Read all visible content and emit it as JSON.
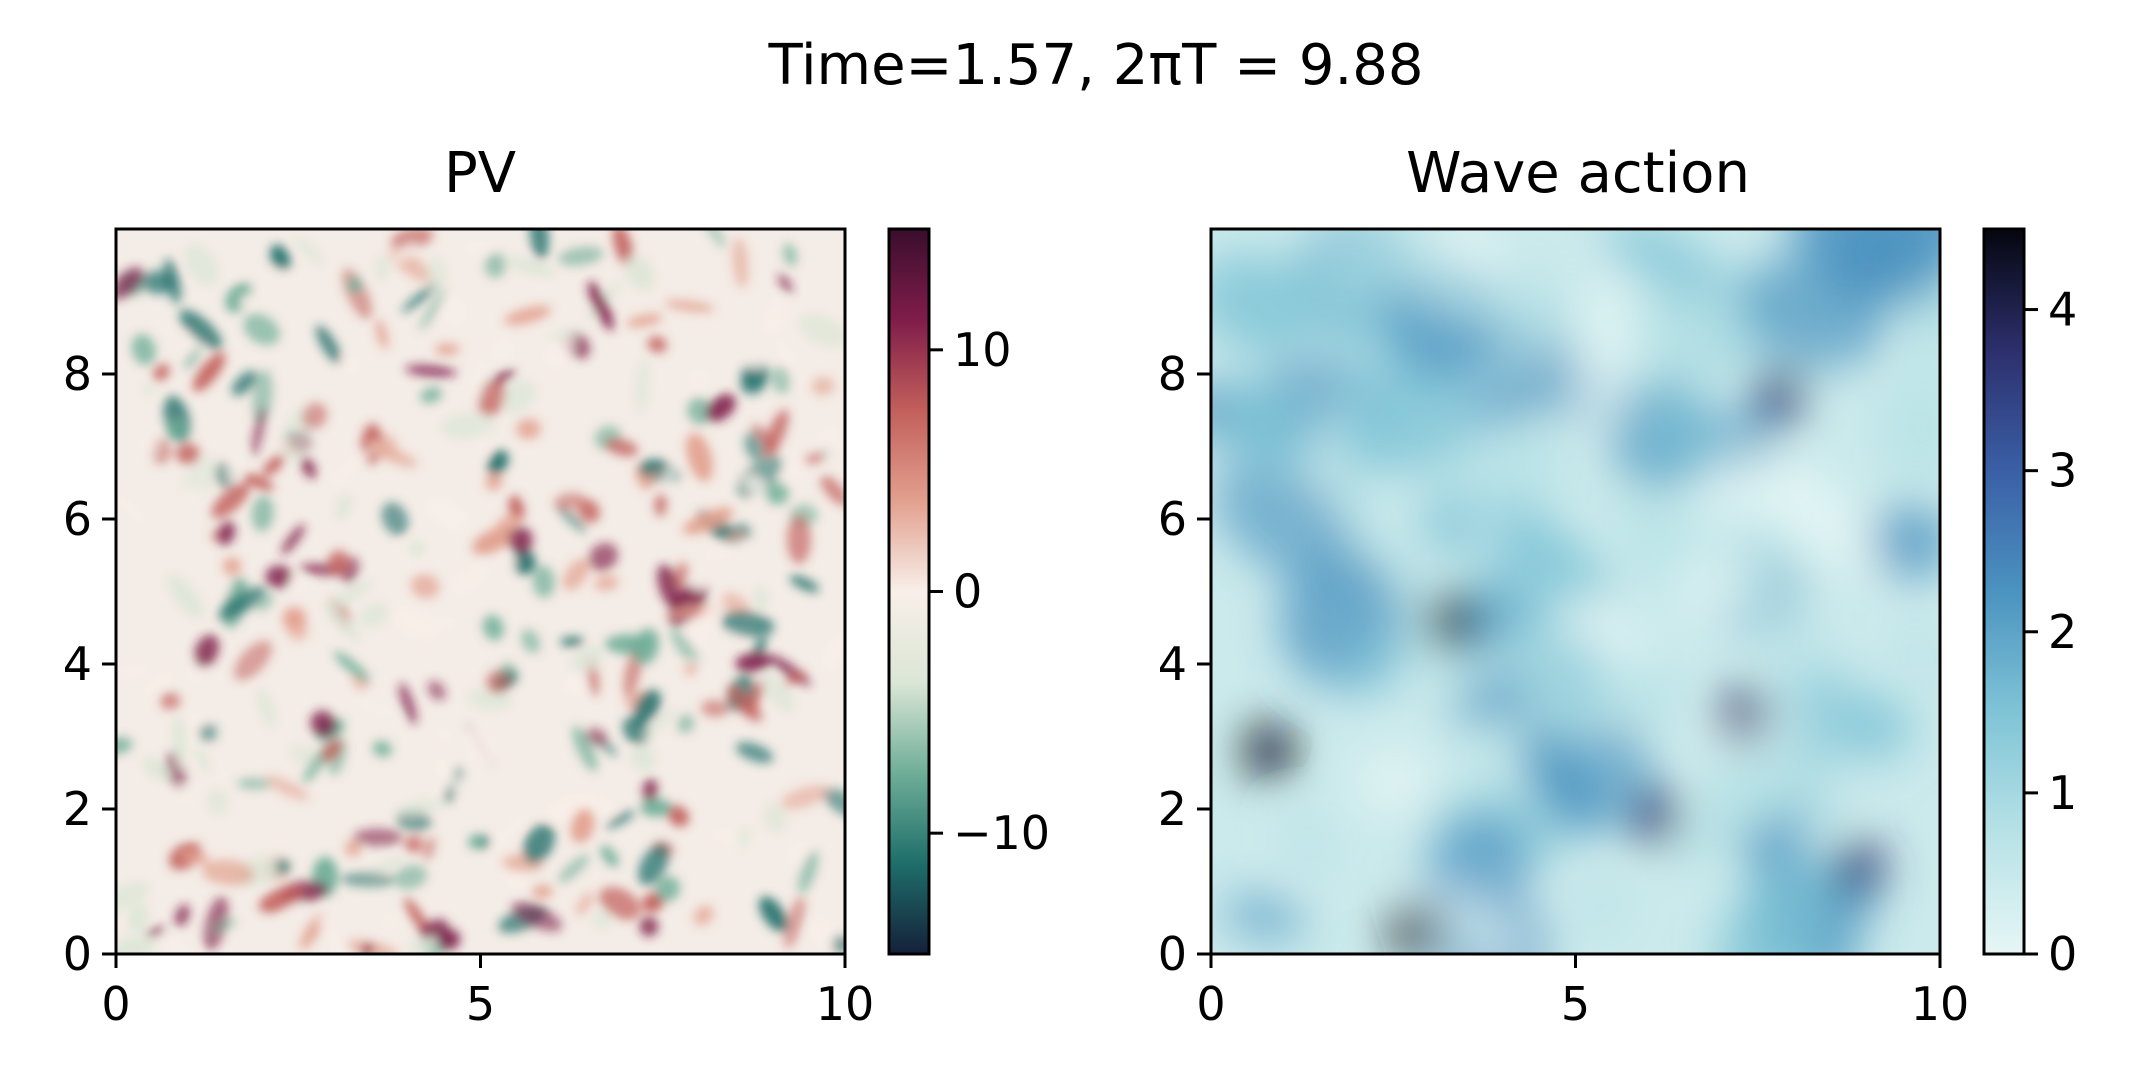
{
  "figure": {
    "suptitle": "Time=1.57, 2πT = 9.88"
  },
  "chart_data": [
    {
      "type": "heatmap",
      "title": "PV",
      "xlabel": "",
      "ylabel": "",
      "xlim": [
        0,
        10
      ],
      "ylim": [
        0,
        10
      ],
      "x_ticks": [
        0,
        5,
        10
      ],
      "y_ticks": [
        0,
        2,
        4,
        6,
        8
      ],
      "colormap": "diverging green-white-red (curl)",
      "colors": [
        "#15203a",
        "#1e6e6a",
        "#6fae98",
        "#dbe6d6",
        "#f8efe9",
        "#e2a08e",
        "#c25f5b",
        "#7f1d4a",
        "#3a0d2d"
      ],
      "colorbar": {
        "range": [
          -15,
          15
        ],
        "ticks": [
          -10,
          0,
          10
        ],
        "tick_labels": [
          "−10",
          "0",
          "10"
        ]
      },
      "grid": false
    },
    {
      "type": "heatmap",
      "title": "Wave action",
      "xlabel": "",
      "ylabel": "",
      "xlim": [
        0,
        10
      ],
      "ylim": [
        0,
        10
      ],
      "x_ticks": [
        0,
        5,
        10
      ],
      "y_ticks": [
        0,
        2,
        4,
        6,
        8
      ],
      "colormap": "sequential light cyan to dark navy (ice)",
      "colors": [
        "#e6f6f5",
        "#b7e2e6",
        "#7fc4d6",
        "#4b93c0",
        "#3a5fa6",
        "#2d2f6d",
        "#05060f"
      ],
      "colorbar": {
        "range": [
          0,
          4.5
        ],
        "ticks": [
          0,
          1,
          2,
          3,
          4
        ],
        "tick_labels": [
          "0",
          "1",
          "2",
          "3",
          "4"
        ]
      },
      "grid": false
    }
  ]
}
